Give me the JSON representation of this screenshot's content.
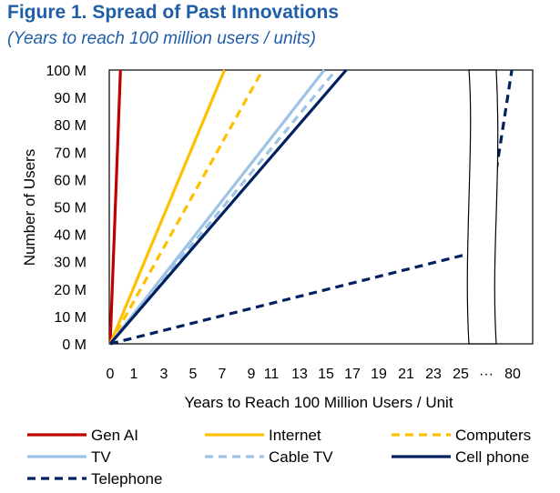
{
  "figure": {
    "title": "Figure 1. Spread of Past Innovations",
    "subtitle": "(Years to reach 100 million users / units)"
  },
  "chart_data": {
    "type": "line",
    "title": "Figure 1. Spread of Past Innovations",
    "subtitle": "(Years to reach 100 million users / units)",
    "xlabel": "Years to Reach 100 Million Users / Unit",
    "ylabel": "Number of Users",
    "x_tick_labels": [
      "0",
      "1",
      "3",
      "5",
      "7",
      "9",
      "11",
      "13",
      "15",
      "17",
      "19",
      "21",
      "23",
      "25",
      "···",
      "80"
    ],
    "y_ticks": [
      0,
      10,
      20,
      30,
      40,
      50,
      60,
      70,
      80,
      90,
      100
    ],
    "y_tick_labels": [
      "0 M",
      "10 M",
      "20 M",
      "30 M",
      "40 M",
      "50 M",
      "60 M",
      "70 M",
      "80 M",
      "90 M",
      "100 M"
    ],
    "xlim": [
      0,
      27.5
    ],
    "ylim": [
      0,
      100
    ],
    "axis_break": "between 26 and 80 years",
    "legend_position": "bottom",
    "series": [
      {
        "name": "Gen AI",
        "color": "#c00000",
        "dash": "solid",
        "years_to_100M": 0.7,
        "points": [
          [
            0,
            0
          ],
          [
            0.7,
            100
          ]
        ]
      },
      {
        "name": "Internet",
        "color": "#ffc000",
        "dash": "solid",
        "years_to_100M": 7.8,
        "points": [
          [
            0,
            0
          ],
          [
            7.8,
            100
          ]
        ]
      },
      {
        "name": "Computers",
        "color": "#ffc000",
        "dash": "dashed",
        "years_to_100M": 10.4,
        "points": [
          [
            0,
            0
          ],
          [
            10.4,
            100
          ]
        ]
      },
      {
        "name": "TV",
        "color": "#9dc3e6",
        "dash": "solid",
        "years_to_100M": 14.6,
        "points": [
          [
            0,
            0
          ],
          [
            14.6,
            100
          ]
        ]
      },
      {
        "name": "Cable TV",
        "color": "#9dc3e6",
        "dash": "dashed",
        "years_to_100M": 15.4,
        "points": [
          [
            0,
            0
          ],
          [
            15.4,
            100
          ]
        ]
      },
      {
        "name": "Cell phone",
        "color": "#002060",
        "dash": "solid",
        "years_to_100M": 16.1,
        "points": [
          [
            0,
            0
          ],
          [
            16.1,
            100
          ]
        ]
      },
      {
        "name": "Telephone",
        "color": "#002060",
        "dash": "dashed",
        "years_to_100M": 75,
        "points": [
          [
            0,
            0
          ],
          [
            25.3,
            34
          ],
          [
            26.3,
            62
          ],
          [
            27.4,
            100
          ]
        ]
      }
    ]
  }
}
